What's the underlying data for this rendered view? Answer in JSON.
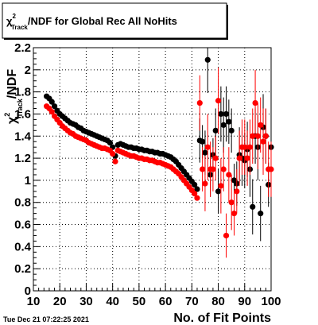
{
  "timestamp": "Tue Dec 21 07:22:25 2021",
  "chart_data": {
    "type": "scatter",
    "title": "χ²Track/NDF for Global Rec All NoHits",
    "title_parts": {
      "chi": "χ",
      "sup": "2",
      "sub": "Track",
      "rest": "/NDF for Global Rec All NoHits"
    },
    "xlabel": "No. of Fit Points",
    "ylabel": "χ²Track/NDF",
    "ylabel_parts": {
      "chi": "χ",
      "sup": "2",
      "sub": "Track",
      "rest": "/NDF"
    },
    "xlim": [
      10,
      100
    ],
    "ylim": [
      0,
      2.2
    ],
    "xticks": [
      "10",
      "20",
      "30",
      "40",
      "50",
      "60",
      "70",
      "80",
      "90",
      "100"
    ],
    "yticks": [
      "0",
      "0.2",
      "0.4",
      "0.6",
      "0.8",
      "1",
      "1.2",
      "1.4",
      "1.6",
      "1.8",
      "2",
      "2.2"
    ],
    "grid": true,
    "legend": "none",
    "series": [
      {
        "color": "#000000",
        "points": [
          [
            15,
            1.76
          ],
          [
            16,
            1.74
          ],
          [
            17,
            1.71
          ],
          [
            18,
            1.67
          ],
          [
            19,
            1.63
          ],
          [
            20,
            1.6
          ],
          [
            21,
            1.58
          ],
          [
            22,
            1.56
          ],
          [
            23,
            1.54
          ],
          [
            24,
            1.52
          ],
          [
            25,
            1.51
          ],
          [
            26,
            1.5
          ],
          [
            27,
            1.48
          ],
          [
            28,
            1.47
          ],
          [
            29,
            1.45
          ],
          [
            30,
            1.44
          ],
          [
            31,
            1.43
          ],
          [
            32,
            1.42
          ],
          [
            33,
            1.41
          ],
          [
            34,
            1.4
          ],
          [
            35,
            1.39
          ],
          [
            36,
            1.38
          ],
          [
            37,
            1.37
          ],
          [
            38,
            1.36
          ],
          [
            39,
            1.34
          ],
          [
            40,
            1.3
          ],
          [
            41,
            1.22
          ],
          [
            42,
            1.32
          ],
          [
            43,
            1.33
          ],
          [
            44,
            1.32
          ],
          [
            45,
            1.31
          ],
          [
            46,
            1.3
          ],
          [
            47,
            1.3
          ],
          [
            48,
            1.29
          ],
          [
            49,
            1.29
          ],
          [
            50,
            1.28
          ],
          [
            51,
            1.28
          ],
          [
            52,
            1.27
          ],
          [
            53,
            1.27
          ],
          [
            54,
            1.26
          ],
          [
            55,
            1.26
          ],
          [
            56,
            1.25
          ],
          [
            57,
            1.25
          ],
          [
            58,
            1.24
          ],
          [
            59,
            1.24
          ],
          [
            60,
            1.23
          ],
          [
            61,
            1.22
          ],
          [
            62,
            1.21
          ],
          [
            63,
            1.19
          ],
          [
            64,
            1.17
          ],
          [
            65,
            1.14
          ],
          [
            66,
            1.11
          ],
          [
            67,
            1.08
          ],
          [
            68,
            1.05
          ],
          [
            69,
            1.02
          ],
          [
            70,
            0.99
          ],
          [
            71,
            0.96
          ],
          [
            72,
            0.92
          ],
          [
            73,
            1.36
          ],
          [
            74,
            1.35
          ],
          [
            75,
            1.25
          ],
          [
            76,
            2.09
          ],
          [
            77,
            1.05
          ],
          [
            78,
            1.23
          ],
          [
            79,
            1.45
          ],
          [
            80,
            0.9
          ],
          [
            81,
            1.6
          ],
          [
            82,
            1.5
          ],
          [
            83,
            1.6
          ],
          [
            84,
            1.53
          ],
          [
            85,
            1.45
          ],
          [
            86,
            1.0
          ],
          [
            87,
            0.97
          ],
          [
            88,
            1.23
          ],
          [
            89,
            1.2
          ],
          [
            90,
            1.18
          ],
          [
            91,
            1.28
          ],
          [
            92,
            1.1
          ],
          [
            93,
            0.76
          ],
          [
            94,
            1.4
          ],
          [
            95,
            1.3
          ],
          [
            96,
            0.7
          ],
          [
            97,
            1.48
          ],
          [
            98,
            1.4
          ],
          [
            99,
            0.96
          ],
          [
            100,
            1.3
          ]
        ],
        "errors": [
          [
            73,
            0.2
          ],
          [
            74,
            0.15
          ],
          [
            75,
            0.2
          ],
          [
            76,
            0.3
          ],
          [
            77,
            0.2
          ],
          [
            78,
            0.15
          ],
          [
            79,
            0.2
          ],
          [
            80,
            0.2
          ],
          [
            81,
            0.25
          ],
          [
            82,
            0.25
          ],
          [
            83,
            0.25
          ],
          [
            84,
            0.2
          ],
          [
            85,
            0.2
          ],
          [
            86,
            0.15
          ],
          [
            87,
            0.2
          ],
          [
            88,
            0.25
          ],
          [
            89,
            0.25
          ],
          [
            90,
            0.25
          ],
          [
            91,
            0.25
          ],
          [
            92,
            0.25
          ],
          [
            93,
            0.25
          ],
          [
            94,
            0.25
          ],
          [
            95,
            0.3
          ],
          [
            96,
            0.25
          ],
          [
            97,
            0.3
          ],
          [
            98,
            0.25
          ],
          [
            99,
            0.2
          ],
          [
            100,
            0.25
          ]
        ]
      },
      {
        "color": "#ff0000",
        "points": [
          [
            15,
            1.67
          ],
          [
            16,
            1.65
          ],
          [
            17,
            1.62
          ],
          [
            18,
            1.58
          ],
          [
            19,
            1.55
          ],
          [
            20,
            1.52
          ],
          [
            21,
            1.49
          ],
          [
            22,
            1.47
          ],
          [
            23,
            1.45
          ],
          [
            24,
            1.43
          ],
          [
            25,
            1.42
          ],
          [
            26,
            1.4
          ],
          [
            27,
            1.39
          ],
          [
            28,
            1.38
          ],
          [
            29,
            1.37
          ],
          [
            30,
            1.36
          ],
          [
            31,
            1.34
          ],
          [
            32,
            1.33
          ],
          [
            33,
            1.32
          ],
          [
            34,
            1.31
          ],
          [
            35,
            1.3
          ],
          [
            36,
            1.29
          ],
          [
            37,
            1.29
          ],
          [
            38,
            1.28
          ],
          [
            39,
            1.27
          ],
          [
            40,
            1.24
          ],
          [
            41,
            1.17
          ],
          [
            42,
            1.27
          ],
          [
            43,
            1.26
          ],
          [
            44,
            1.25
          ],
          [
            45,
            1.24
          ],
          [
            46,
            1.23
          ],
          [
            47,
            1.22
          ],
          [
            48,
            1.22
          ],
          [
            49,
            1.21
          ],
          [
            50,
            1.2
          ],
          [
            51,
            1.2
          ],
          [
            52,
            1.19
          ],
          [
            53,
            1.19
          ],
          [
            54,
            1.18
          ],
          [
            55,
            1.18
          ],
          [
            56,
            1.17
          ],
          [
            57,
            1.16
          ],
          [
            58,
            1.16
          ],
          [
            59,
            1.15
          ],
          [
            60,
            1.14
          ],
          [
            61,
            1.13
          ],
          [
            62,
            1.12
          ],
          [
            63,
            1.1
          ],
          [
            64,
            1.08
          ],
          [
            65,
            1.06
          ],
          [
            66,
            1.03
          ],
          [
            67,
            1.0
          ],
          [
            68,
            0.97
          ],
          [
            69,
            0.94
          ],
          [
            70,
            0.91
          ],
          [
            71,
            0.88
          ],
          [
            72,
            0.84
          ],
          [
            73,
            1.7
          ],
          [
            74,
            1.1
          ],
          [
            75,
            0.97
          ],
          [
            76,
            1.3
          ],
          [
            77,
            1.1
          ],
          [
            78,
            1.1
          ],
          [
            79,
            1.2
          ],
          [
            80,
            1.72
          ],
          [
            81,
            0.95
          ],
          [
            82,
            1.1
          ],
          [
            83,
            0.5
          ],
          [
            84,
            1.05
          ],
          [
            85,
            0.8
          ],
          [
            86,
            0.7
          ],
          [
            87,
            0.9
          ],
          [
            88,
            1.2
          ],
          [
            89,
            1.3
          ],
          [
            90,
            1.3
          ],
          [
            91,
            1.2
          ],
          [
            92,
            1.3
          ],
          [
            93,
            1.4
          ],
          [
            94,
            1.7
          ],
          [
            95,
            1.4
          ],
          [
            96,
            1.5
          ],
          [
            97,
            1.35
          ],
          [
            98,
            1.4
          ],
          [
            99,
            1.1
          ],
          [
            100,
            1.1
          ]
        ],
        "errors": [
          [
            73,
            0.25
          ],
          [
            74,
            0.2
          ],
          [
            75,
            0.25
          ],
          [
            76,
            0.3
          ],
          [
            77,
            0.25
          ],
          [
            78,
            0.2
          ],
          [
            79,
            0.2
          ],
          [
            80,
            0.3
          ],
          [
            81,
            0.25
          ],
          [
            82,
            0.2
          ],
          [
            83,
            0.2
          ],
          [
            84,
            0.25
          ],
          [
            85,
            0.25
          ],
          [
            86,
            0.2
          ],
          [
            87,
            0.2
          ],
          [
            88,
            0.25
          ],
          [
            89,
            0.25
          ],
          [
            90,
            0.25
          ],
          [
            91,
            0.25
          ],
          [
            92,
            0.25
          ],
          [
            93,
            0.25
          ],
          [
            94,
            0.3
          ],
          [
            95,
            0.3
          ],
          [
            96,
            0.25
          ],
          [
            97,
            0.3
          ],
          [
            98,
            0.25
          ],
          [
            99,
            0.25
          ],
          [
            100,
            0.25
          ]
        ]
      }
    ]
  }
}
